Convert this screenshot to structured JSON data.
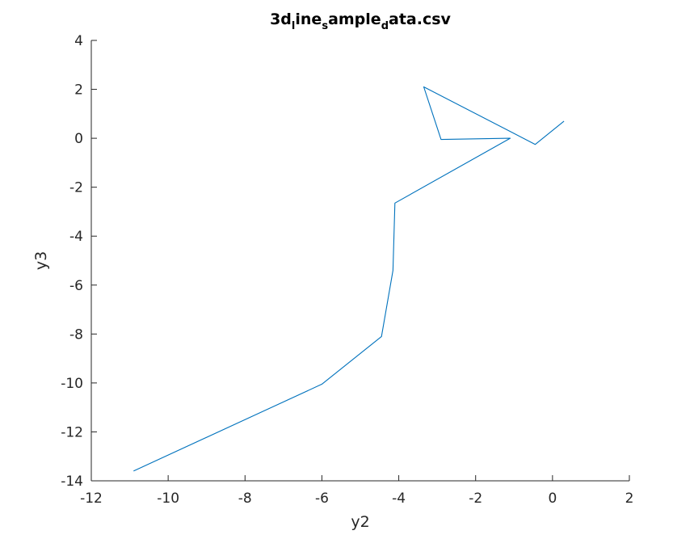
{
  "chart_data": {
    "type": "line",
    "title": "3d_line_sample_data.csv",
    "title_display": {
      "parts": [
        {
          "text": "3d",
          "sub": false
        },
        {
          "text": "l",
          "sub": true
        },
        {
          "text": "ine",
          "sub": false
        },
        {
          "text": "s",
          "sub": true
        },
        {
          "text": "ample",
          "sub": false
        },
        {
          "text": "d",
          "sub": true
        },
        {
          "text": "ata.csv",
          "sub": false
        }
      ]
    },
    "xlabel": "y2",
    "ylabel": "y3",
    "xlim": [
      -12,
      2
    ],
    "ylim": [
      -14,
      4
    ],
    "xticks": [
      -12,
      -10,
      -8,
      -6,
      -4,
      -2,
      0,
      2
    ],
    "yticks": [
      -14,
      -12,
      -10,
      -8,
      -6,
      -4,
      -2,
      0,
      2,
      4
    ],
    "xtick_labels": [
      "-12",
      "-10",
      "-8",
      "-6",
      "-4",
      "-2",
      "0",
      "2"
    ],
    "ytick_labels": [
      "-14",
      "-12",
      "-10",
      "-8",
      "-6",
      "-4",
      "-2",
      "0",
      "2",
      "4"
    ],
    "grid": false,
    "series": [
      {
        "color": "#0072bd",
        "x": [
          -10.9,
          -6.0,
          -4.45,
          -4.15,
          -4.1,
          -1.1,
          -2.9,
          -3.35,
          -0.45,
          0.3
        ],
        "y": [
          -13.6,
          -10.05,
          -8.1,
          -5.4,
          -2.65,
          0.0,
          -0.05,
          2.1,
          -0.25,
          0.7
        ]
      }
    ]
  }
}
